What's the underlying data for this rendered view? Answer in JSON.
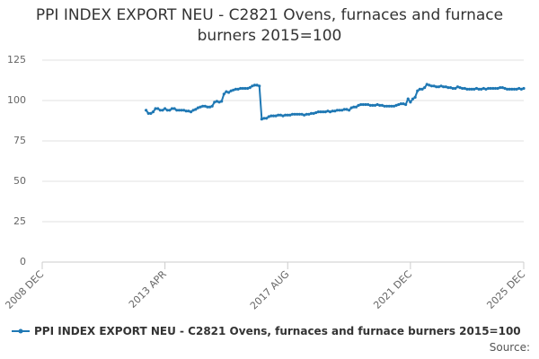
{
  "chart_data": {
    "type": "line",
    "title": "PPI INDEX EXPORT NEU - C2821 Ovens, furnaces and furnace burners 2015=100",
    "source": "Source:",
    "xlim": [
      "2008 DEC",
      "2025 DEC"
    ],
    "xticks": [
      "2008 DEC",
      "2013 APR",
      "2017 AUG",
      "2021 DEC",
      "2025 DEC"
    ],
    "ylim": [
      0,
      125
    ],
    "yticks": [
      0,
      25,
      50,
      75,
      100,
      125
    ],
    "grid": true,
    "legend": "bottom",
    "x": [
      "2012 AUG",
      "2012 SEP",
      "2012 OCT",
      "2012 NOV",
      "2012 DEC",
      "2013 JAN",
      "2013 FEB",
      "2013 MAR",
      "2013 APR",
      "2013 MAY",
      "2013 JUN",
      "2013 JUL",
      "2013 AUG",
      "2013 SEP",
      "2013 OCT",
      "2013 NOV",
      "2013 DEC",
      "2014 JAN",
      "2014 FEB",
      "2014 MAR",
      "2014 APR",
      "2014 MAY",
      "2014 JUN",
      "2014 JUL",
      "2014 AUG",
      "2014 SEP",
      "2014 OCT",
      "2014 NOV",
      "2014 DEC",
      "2015 JAN",
      "2015 FEB",
      "2015 MAR",
      "2015 APR",
      "2015 MAY",
      "2015 JUN",
      "2015 JUL",
      "2015 AUG",
      "2015 SEP",
      "2015 OCT",
      "2015 NOV",
      "2015 DEC",
      "2016 JAN",
      "2016 FEB",
      "2016 MAR",
      "2016 APR",
      "2016 MAY",
      "2016 JUN",
      "2016 JUL",
      "2016 AUG",
      "2016 SEP",
      "2016 OCT",
      "2016 NOV",
      "2016 DEC",
      "2017 JAN",
      "2017 FEB",
      "2017 MAR",
      "2017 APR",
      "2017 MAY",
      "2017 JUN",
      "2017 JUL",
      "2017 AUG",
      "2017 SEP",
      "2017 OCT",
      "2017 NOV",
      "2017 DEC",
      "2018 JAN",
      "2018 FEB",
      "2018 MAR",
      "2018 APR",
      "2018 MAY",
      "2018 JUN",
      "2018 JUL",
      "2018 AUG",
      "2018 SEP",
      "2018 OCT",
      "2018 NOV",
      "2018 DEC",
      "2019 JAN",
      "2019 FEB",
      "2019 MAR",
      "2019 APR",
      "2019 MAY",
      "2019 JUN",
      "2019 JUL",
      "2019 AUG",
      "2019 SEP",
      "2019 OCT",
      "2019 NOV",
      "2019 DEC",
      "2020 JAN",
      "2020 FEB",
      "2020 MAR",
      "2020 APR",
      "2020 MAY",
      "2020 JUN",
      "2020 JUL",
      "2020 AUG",
      "2020 SEP",
      "2020 OCT",
      "2020 NOV",
      "2020 DEC",
      "2021 JAN",
      "2021 FEB",
      "2021 MAR",
      "2021 APR",
      "2021 MAY",
      "2021 JUN",
      "2021 JUL",
      "2021 AUG",
      "2021 SEP",
      "2021 OCT",
      "2021 NOV",
      "2021 DEC",
      "2022 JAN",
      "2022 FEB",
      "2022 MAR",
      "2022 APR",
      "2022 MAY",
      "2022 JUN",
      "2022 JUL",
      "2022 AUG",
      "2022 SEP",
      "2022 OCT",
      "2022 NOV",
      "2022 DEC",
      "2023 JAN",
      "2023 FEB",
      "2023 MAR",
      "2023 APR",
      "2023 MAY",
      "2023 JUN",
      "2023 JUL",
      "2023 AUG",
      "2023 SEP",
      "2023 OCT",
      "2023 NOV",
      "2023 DEC",
      "2024 JAN",
      "2024 FEB",
      "2024 MAR",
      "2024 APR",
      "2024 MAY",
      "2024 JUN",
      "2024 JUL",
      "2024 AUG",
      "2024 SEP",
      "2024 OCT",
      "2024 NOV",
      "2024 DEC",
      "2025 JAN",
      "2025 FEB",
      "2025 MAR",
      "2025 APR",
      "2025 MAY",
      "2025 JUN",
      "2025 JUL",
      "2025 AUG",
      "2025 SEP",
      "2025 OCT",
      "2025 NOV",
      "2025 DEC"
    ],
    "series": [
      {
        "name": "PPI INDEX EXPORT NEU - C2821 Ovens, furnaces and furnace burners 2015=100",
        "color": "#1f78b4",
        "values": [
          94,
          92,
          92,
          93,
          95,
          95,
          94,
          94,
          95,
          94,
          94,
          95,
          95,
          94,
          94,
          94,
          94,
          93.5,
          93.5,
          93,
          94,
          94.5,
          95.5,
          96,
          96.5,
          96.5,
          96,
          96,
          96.5,
          99,
          99.5,
          99,
          99.5,
          104,
          105.5,
          105,
          106,
          106.5,
          107,
          107,
          107.5,
          107.5,
          107.5,
          107.5,
          108,
          109,
          109.5,
          109.5,
          109,
          88.5,
          89,
          89,
          90,
          90.5,
          90.5,
          90.5,
          91,
          91,
          90.5,
          91,
          91,
          91,
          91.5,
          91.5,
          91.5,
          91.5,
          91.5,
          91,
          91.5,
          91.5,
          92,
          92,
          92.5,
          93,
          93,
          93,
          93,
          93.5,
          93,
          93.5,
          93.5,
          94,
          94,
          94,
          94.5,
          94.5,
          94,
          95.5,
          96,
          96,
          97,
          97.5,
          97.5,
          97.5,
          97.5,
          97,
          97,
          97,
          97.5,
          97,
          97,
          96.5,
          96.5,
          96.5,
          96.5,
          96.5,
          97,
          97.5,
          98,
          98,
          97.5,
          101,
          99,
          101,
          102,
          106,
          107,
          107,
          108,
          110,
          109.5,
          109,
          109,
          108.5,
          108.5,
          109,
          108.5,
          108.5,
          108,
          108,
          107.5,
          107.5,
          108.5,
          108,
          107.5,
          107.5,
          107,
          107,
          107,
          107,
          107.5,
          107,
          107,
          107.5,
          107,
          107.5,
          107.5,
          107.5,
          107.5,
          107.5,
          108,
          108,
          107.5,
          107,
          107,
          107,
          107,
          107,
          107.5,
          107,
          107.5
        ]
      }
    ]
  }
}
